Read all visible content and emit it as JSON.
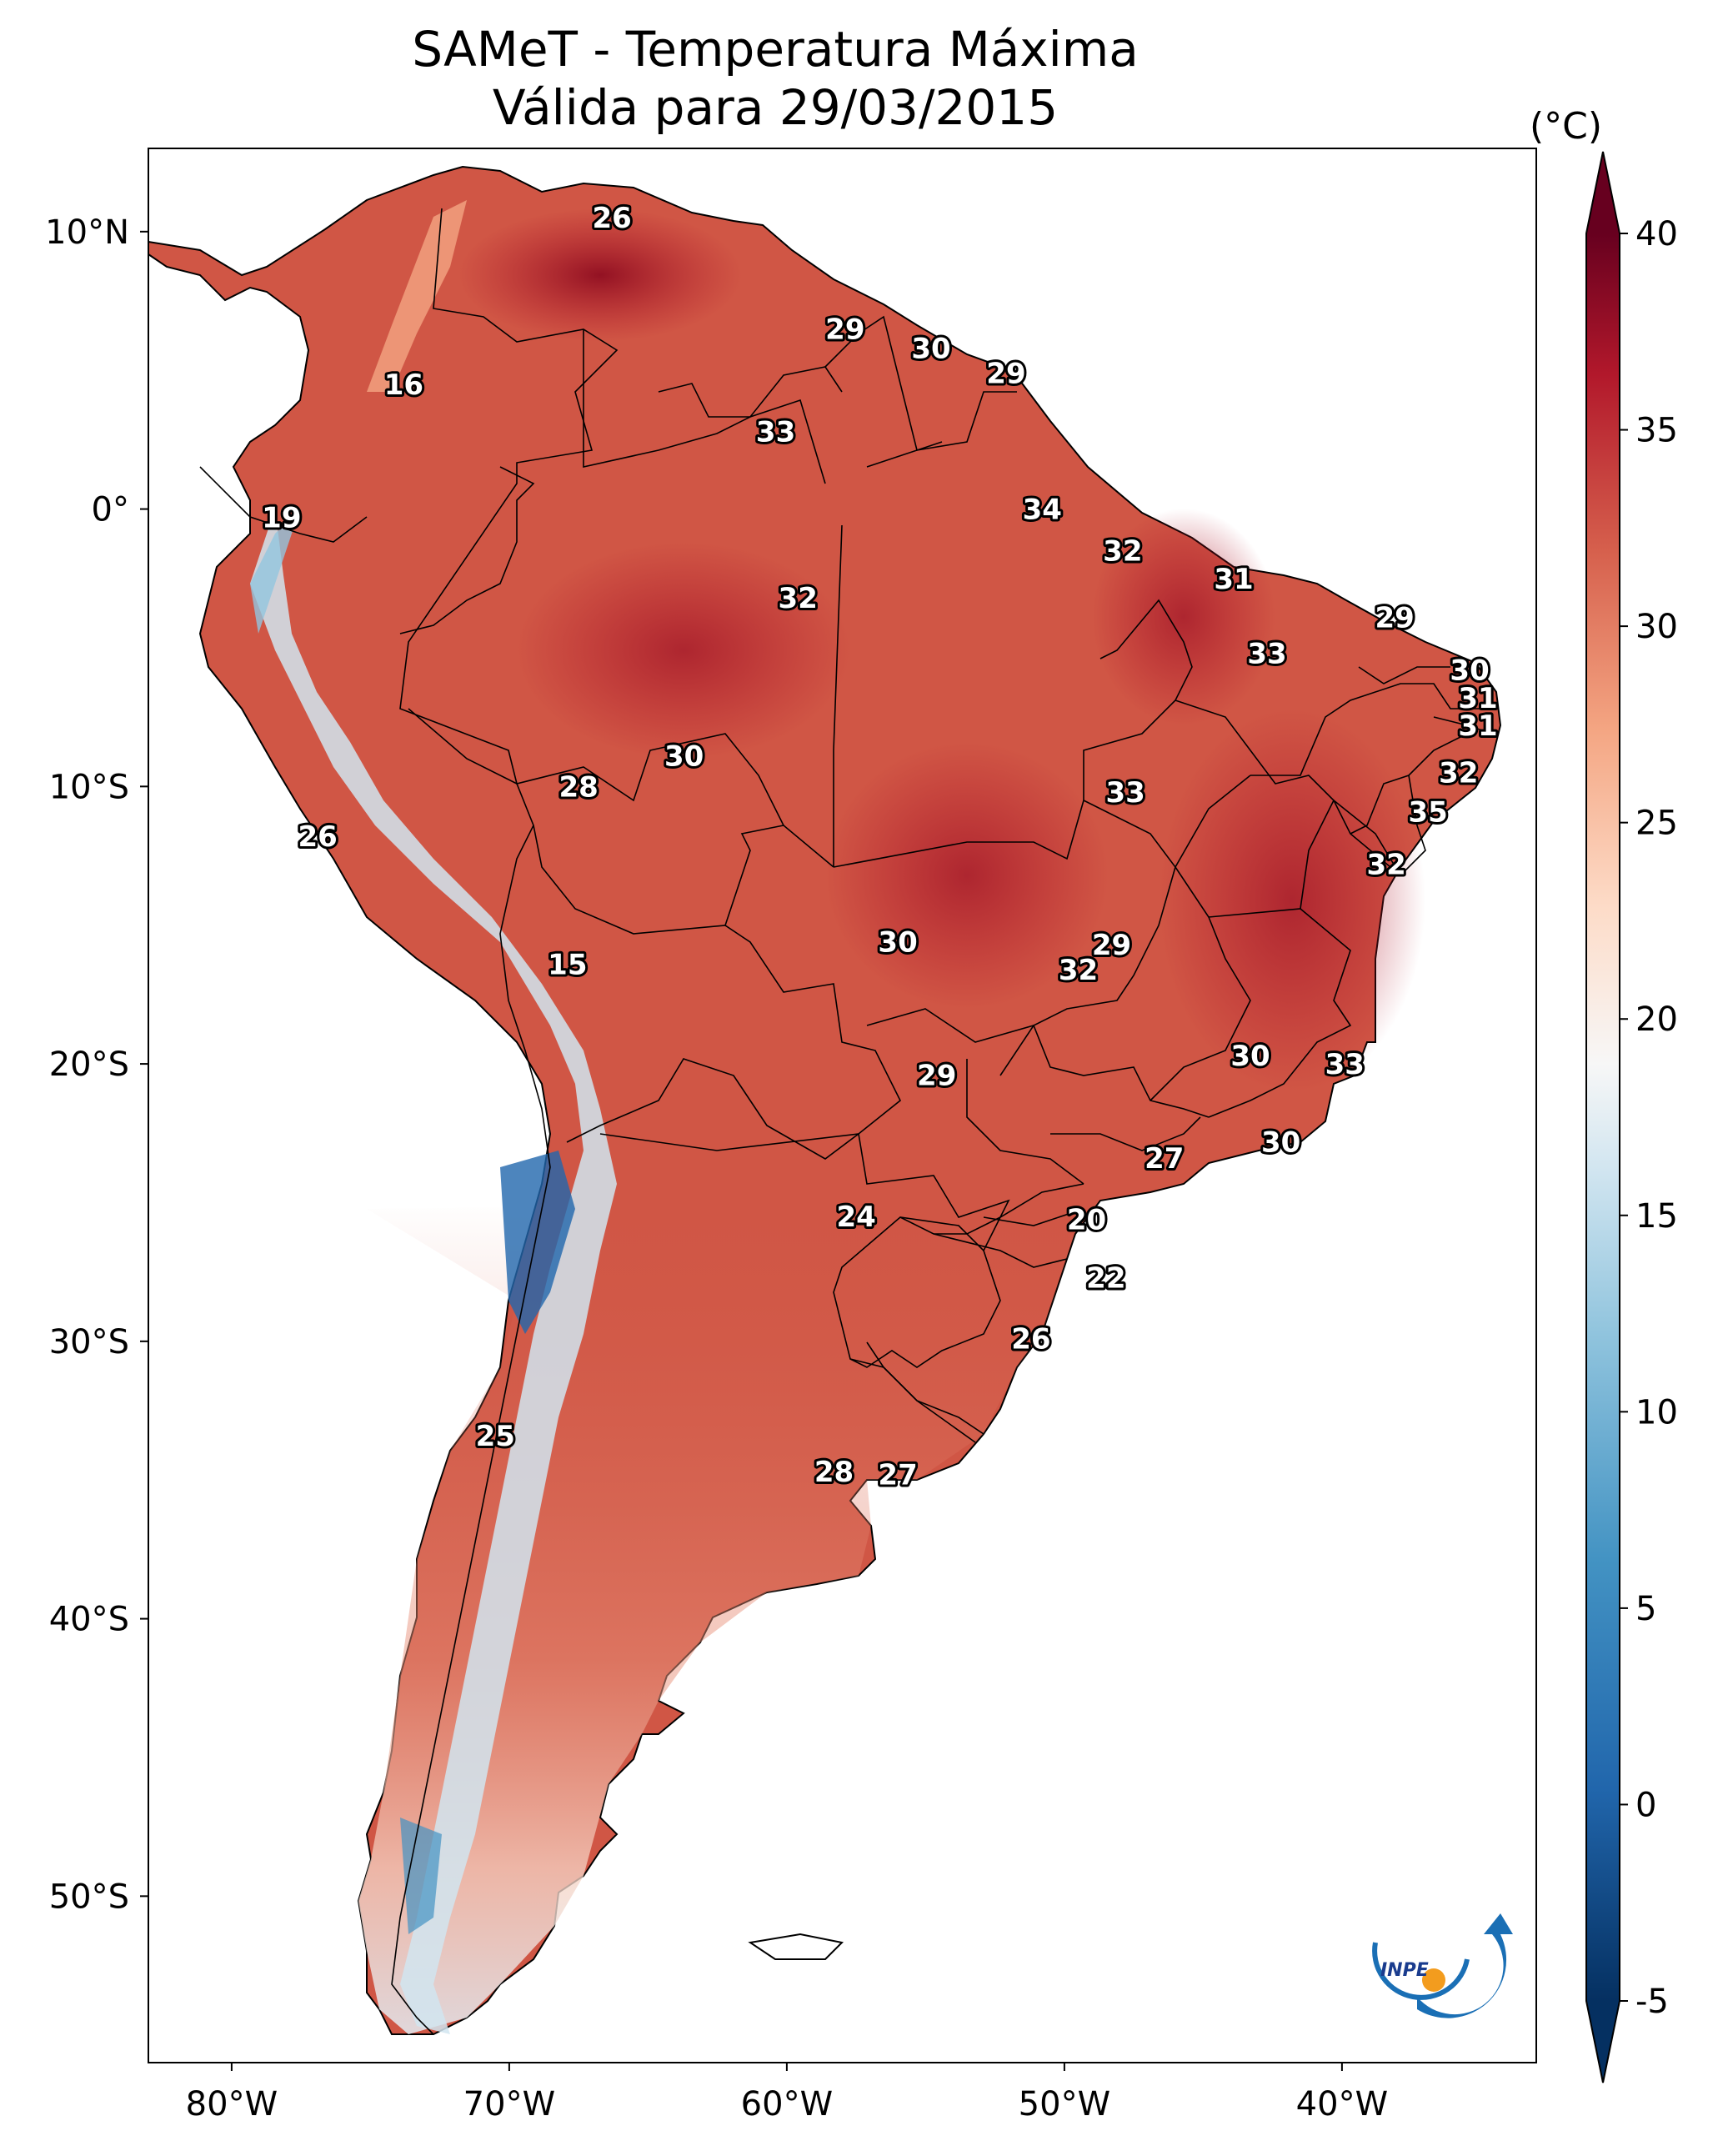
{
  "title": "SAMeT - Temperatura Máxima",
  "subtitle": "Válida para 29/03/2015",
  "colorbar": {
    "unit": "(°C)",
    "ticks": [
      "40",
      "35",
      "30",
      "25",
      "20",
      "15",
      "10",
      "5",
      "0",
      "-5"
    ],
    "min": -5,
    "max": 40,
    "colors": {
      "cold": "#053061",
      "cool": "#4393c3",
      "neutral": "#f7f7f7",
      "warm": "#f4a582",
      "hot": "#d6604d",
      "hottest": "#67001f"
    }
  },
  "axes": {
    "lat_ticks": [
      "10°N",
      "0°",
      "10°S",
      "20°S",
      "30°S",
      "40°S",
      "50°S"
    ],
    "lon_ticks": [
      "80°W",
      "70°W",
      "60°W",
      "50°W",
      "40°W"
    ]
  },
  "logo": "INPE",
  "contour_labels": [
    {
      "text": "26",
      "lon": -66.3,
      "lat": 10.5
    },
    {
      "text": "29",
      "lon": -57.9,
      "lat": 6.5
    },
    {
      "text": "30",
      "lon": -54.8,
      "lat": 5.8
    },
    {
      "text": "29",
      "lon": -52.1,
      "lat": 4.9
    },
    {
      "text": "16",
      "lon": -73.8,
      "lat": 4.5
    },
    {
      "text": "33",
      "lon": -60.4,
      "lat": 2.8
    },
    {
      "text": "34",
      "lon": -50.8,
      "lat": 0.0
    },
    {
      "text": "19",
      "lon": -78.2,
      "lat": -0.3
    },
    {
      "text": "32",
      "lon": -47.9,
      "lat": -1.5
    },
    {
      "text": "31",
      "lon": -43.9,
      "lat": -2.5
    },
    {
      "text": "32",
      "lon": -59.6,
      "lat": -3.2
    },
    {
      "text": "29",
      "lon": -38.1,
      "lat": -3.9
    },
    {
      "text": "33",
      "lon": -42.7,
      "lat": -5.2
    },
    {
      "text": "30",
      "lon": -35.4,
      "lat": -5.8
    },
    {
      "text": "31",
      "lon": -35.1,
      "lat": -6.8
    },
    {
      "text": "31",
      "lon": -35.1,
      "lat": -7.8
    },
    {
      "text": "30",
      "lon": -63.7,
      "lat": -8.9
    },
    {
      "text": "32",
      "lon": -35.8,
      "lat": -9.5
    },
    {
      "text": "28",
      "lon": -67.5,
      "lat": -10.0
    },
    {
      "text": "33",
      "lon": -47.8,
      "lat": -10.2
    },
    {
      "text": "35",
      "lon": -36.9,
      "lat": -10.9
    },
    {
      "text": "26",
      "lon": -76.9,
      "lat": -11.8
    },
    {
      "text": "32",
      "lon": -38.4,
      "lat": -12.8
    },
    {
      "text": "30",
      "lon": -56.0,
      "lat": -15.6
    },
    {
      "text": "29",
      "lon": -48.3,
      "lat": -15.7
    },
    {
      "text": "32",
      "lon": -49.5,
      "lat": -16.6
    },
    {
      "text": "15",
      "lon": -67.9,
      "lat": -16.4
    },
    {
      "text": "30",
      "lon": -43.3,
      "lat": -19.7
    },
    {
      "text": "33",
      "lon": -39.9,
      "lat": -20.0
    },
    {
      "text": "29",
      "lon": -54.6,
      "lat": -20.4
    },
    {
      "text": "30",
      "lon": -42.2,
      "lat": -22.8
    },
    {
      "text": "27",
      "lon": -46.4,
      "lat": -23.4
    },
    {
      "text": "24",
      "lon": -57.5,
      "lat": -25.5
    },
    {
      "text": "20",
      "lon": -49.2,
      "lat": -25.6
    },
    {
      "text": "22",
      "lon": -48.5,
      "lat": -27.7
    },
    {
      "text": "26",
      "lon": -51.2,
      "lat": -29.9
    },
    {
      "text": "25",
      "lon": -70.5,
      "lat": -33.4
    },
    {
      "text": "28",
      "lon": -58.3,
      "lat": -34.7
    },
    {
      "text": "27",
      "lon": -56.0,
      "lat": -34.8
    }
  ]
}
